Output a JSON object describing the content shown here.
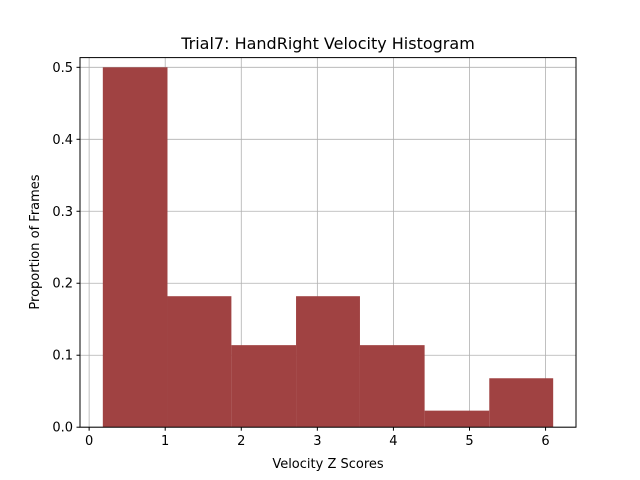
{
  "chart_data": {
    "type": "bar",
    "title": "Trial7: HandRight Velocity Histogram",
    "xlabel": "Velocity Z Scores",
    "ylabel": "Proportion of Frames",
    "bins": [
      {
        "x0": 0.18,
        "x1": 1.03,
        "value": 0.5
      },
      {
        "x0": 1.03,
        "x1": 1.87,
        "value": 0.182
      },
      {
        "x0": 1.87,
        "x1": 2.72,
        "value": 0.114
      },
      {
        "x0": 2.72,
        "x1": 3.56,
        "value": 0.182
      },
      {
        "x0": 3.56,
        "x1": 4.41,
        "value": 0.114
      },
      {
        "x0": 4.41,
        "x1": 5.26,
        "value": 0.023
      },
      {
        "x0": 5.26,
        "x1": 6.1,
        "value": 0.068
      }
    ],
    "bar_color": "#a04242",
    "xlim": [
      -0.12,
      6.4
    ],
    "ylim": [
      0,
      0.5135
    ],
    "xticks": [
      0,
      1,
      2,
      3,
      4,
      5,
      6
    ],
    "yticks": [
      0.0,
      0.1,
      0.2,
      0.3,
      0.4,
      0.5
    ],
    "xtick_labels": [
      "0",
      "1",
      "2",
      "3",
      "4",
      "5",
      "6"
    ],
    "ytick_labels": [
      "0.0",
      "0.1",
      "0.2",
      "0.3",
      "0.4",
      "0.5"
    ],
    "grid": true,
    "legend": "none"
  }
}
